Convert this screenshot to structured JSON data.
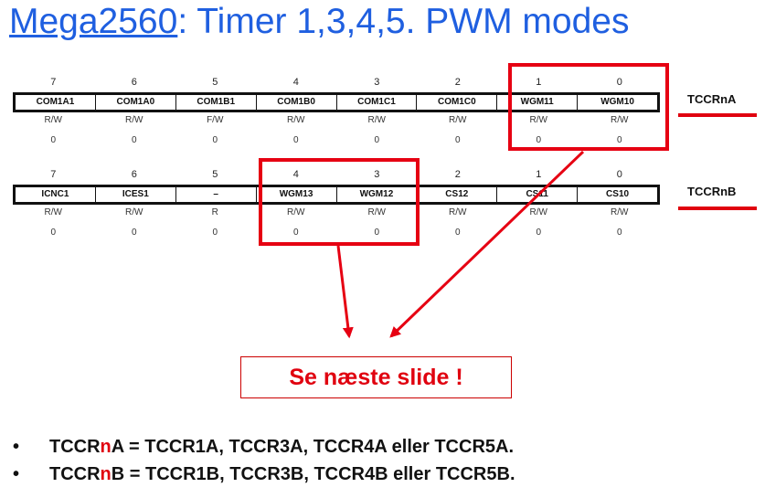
{
  "title": {
    "link": "Mega2560",
    "rest": ": Timer 1,3,4,5. PWM modes"
  },
  "registers": [
    {
      "name": "TCCRnA",
      "bits": [
        "7",
        "6",
        "5",
        "4",
        "3",
        "2",
        "1",
        "0"
      ],
      "fields": [
        "COM1A1",
        "COM1A0",
        "COM1B1",
        "COM1B0",
        "COM1C1",
        "COM1C0",
        "WGM11",
        "WGM10"
      ],
      "access": [
        "R/W",
        "R/W",
        "F/W",
        "R/W",
        "R/W",
        "R/W",
        "R/W",
        "R/W"
      ],
      "initial": [
        "0",
        "0",
        "0",
        "0",
        "0",
        "0",
        "0",
        "0"
      ]
    },
    {
      "name": "TCCRnB",
      "bits": [
        "7",
        "6",
        "5",
        "4",
        "3",
        "2",
        "1",
        "0"
      ],
      "fields": [
        "ICNC1",
        "ICES1",
        "–",
        "WGM13",
        "WGM12",
        "CS12",
        "CS11",
        "CS10"
      ],
      "access": [
        "R/W",
        "R/W",
        "R",
        "R/W",
        "R/W",
        "R/W",
        "R/W",
        "R/W"
      ],
      "initial": [
        "0",
        "0",
        "0",
        "0",
        "0",
        "0",
        "0",
        "0"
      ]
    }
  ],
  "callout": "Se næste slide !",
  "bullets": [
    {
      "symbol": "•",
      "pre": "TCCR",
      "n": "n",
      "post": "A = TCCR1A, TCCR3A, TCCR4A eller TCCR5A."
    },
    {
      "symbol": "•",
      "pre": "TCCR",
      "n": "n",
      "post": "B = TCCR1B, TCCR3B, TCCR4B eller TCCR5B."
    }
  ],
  "colors": {
    "title": "#1f5fe0",
    "accent_red": "#e0000f"
  }
}
